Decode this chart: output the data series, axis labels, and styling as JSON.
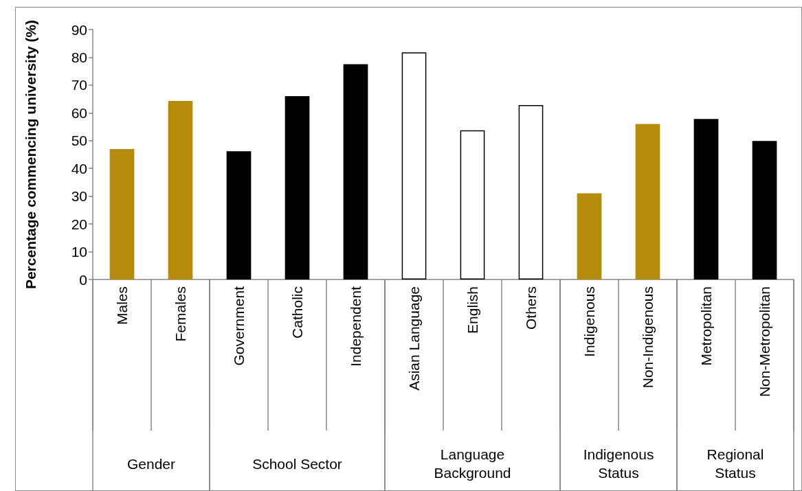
{
  "chart_data": {
    "type": "bar",
    "ylabel": "Percentage commencing university (%)",
    "categories": [
      "Males",
      "Females",
      "Government",
      "Catholic",
      "Independent",
      "Asian Language",
      "English",
      "Others",
      "Indigenous",
      "Non-Indigenous",
      "Metropolitan",
      "Non-Metropolitan"
    ],
    "values": [
      47,
      64.3,
      46.2,
      66,
      77.5,
      81.8,
      53.7,
      62.8,
      31,
      56,
      57.8,
      49.9
    ],
    "colors": [
      "#b58b0c",
      "#b58b0c",
      "#000000",
      "#000000",
      "#000000",
      "#ffffff",
      "#ffffff",
      "#ffffff",
      "#b58b0c",
      "#b58b0c",
      "#000000",
      "#000000"
    ],
    "ylim": [
      0,
      90
    ],
    "yticks": [
      0,
      10,
      20,
      30,
      40,
      50,
      60,
      70,
      80,
      90
    ],
    "grid": false,
    "annotations": [
      "Gender",
      "School Sector",
      "Language\nBackground",
      "Indigenous\nStatus",
      "Regional\nStatus"
    ]
  }
}
